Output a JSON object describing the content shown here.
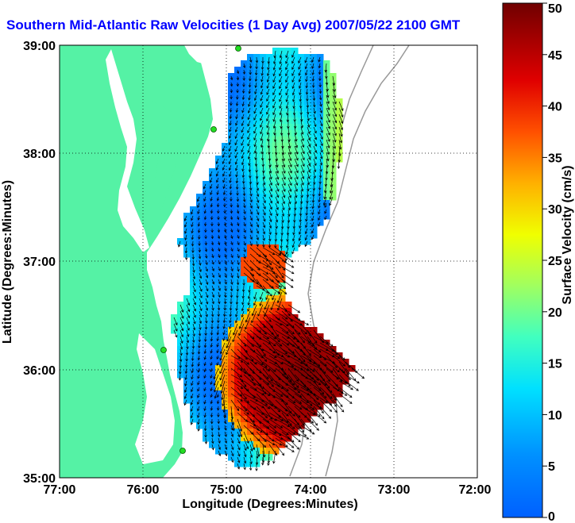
{
  "title": "Southern Mid-Atlantic Raw Velocities (1 Day Avg) 2007/05/22 2100 GMT",
  "map": {
    "xlabel": "Longitude (Degrees:Minutes)",
    "ylabel": "Latitude (Degrees:Minutes)",
    "x_ticks": [
      "77:00",
      "76:00",
      "75:00",
      "74:00",
      "73:00",
      "72:00"
    ],
    "y_ticks": [
      "39:00",
      "38:00",
      "37:00",
      "36:00",
      "35:00"
    ],
    "lon_range": [
      -77,
      -72
    ],
    "lat_range": [
      35,
      39
    ],
    "grid": true,
    "land_color": "#55f2a5",
    "water_color": "#ffffff",
    "bathymetry_color": "#999999",
    "arrow_color": "#000000",
    "station_color": "#22dd22"
  },
  "colorbar": {
    "label": "Surface Velocity (cm/s)",
    "ticks": [
      "50",
      "45",
      "40",
      "35",
      "30",
      "25",
      "20",
      "15",
      "10",
      "5",
      "0"
    ],
    "range": [
      0,
      50
    ],
    "colormap": "jet"
  }
}
